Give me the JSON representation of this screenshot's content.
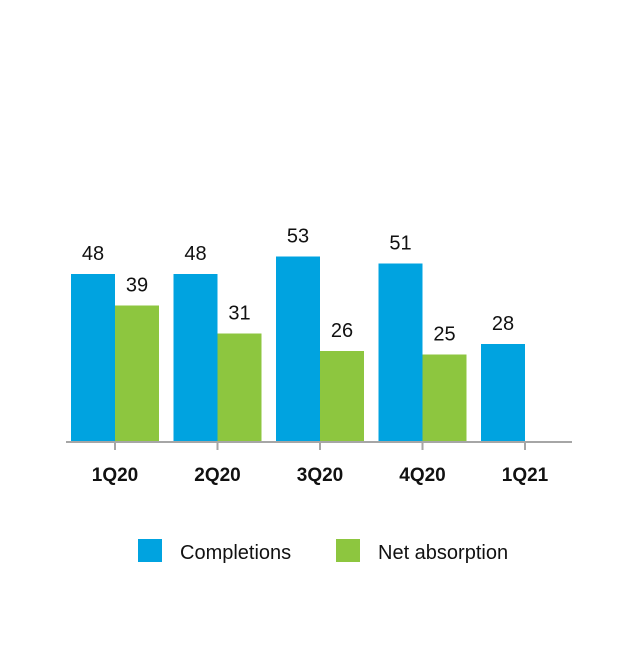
{
  "chart_data": {
    "type": "bar",
    "categories": [
      "1Q20",
      "2Q20",
      "3Q20",
      "4Q20",
      "1Q21"
    ],
    "series": [
      {
        "name": "Completions",
        "color": "#00a3e0",
        "values": [
          48,
          48,
          53,
          51,
          28
        ]
      },
      {
        "name": "Net absorption",
        "color": "#8dc63f",
        "values": [
          39,
          31,
          26,
          25,
          null
        ]
      }
    ],
    "ylim": [
      0,
      60
    ],
    "grid": false,
    "legend_placement": "bottom",
    "axis_color": "#a6a6a6"
  }
}
